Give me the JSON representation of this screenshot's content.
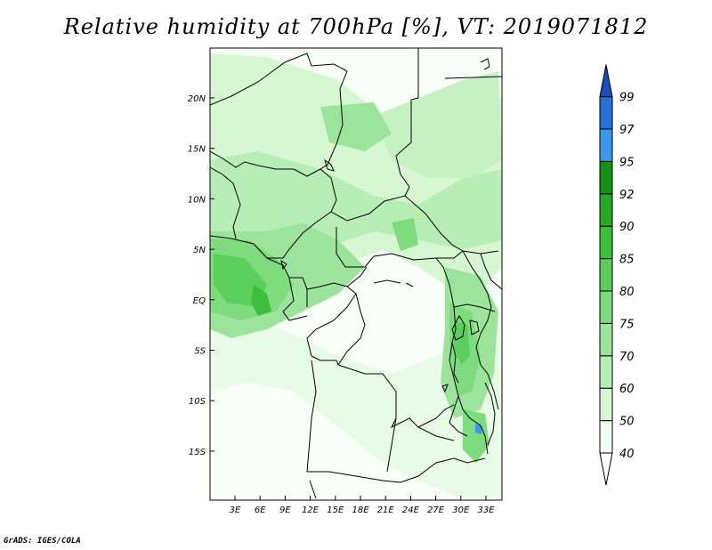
{
  "title": "Relative humidity at 700hPa [%], VT: 2019071812",
  "credit": "GrADS: IGES/COLA",
  "map": {
    "lon_ticks": [
      "3E",
      "6E",
      "9E",
      "12E",
      "15E",
      "18E",
      "21E",
      "24E",
      "27E",
      "30E",
      "33E"
    ],
    "lat_ticks": [
      "20N",
      "15N",
      "10N",
      "5N",
      "EQ",
      "5S",
      "10S",
      "15S"
    ]
  },
  "colorbar": {
    "labels": [
      "40",
      "50",
      "60",
      "70",
      "75",
      "80",
      "85",
      "90",
      "92",
      "95",
      "97",
      "99"
    ],
    "colors": [
      "#f0fff0",
      "#d7f7d3",
      "#b7eeb5",
      "#9ce49c",
      "#7edb7e",
      "#5cce5c",
      "#3dbe3d",
      "#26a826",
      "#149314",
      "#3c98ea",
      "#2272d8",
      "#1a4fb8"
    ],
    "under_color": "#ffffff"
  }
}
